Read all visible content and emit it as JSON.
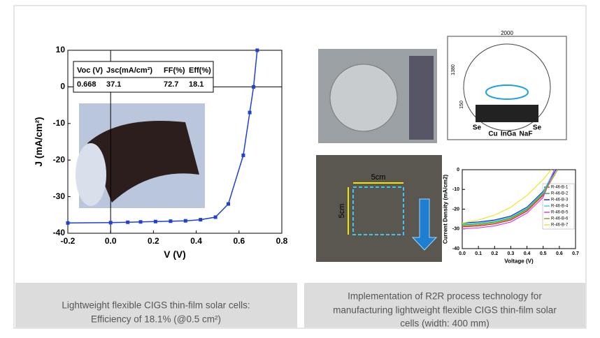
{
  "chart_data": [
    {
      "type": "line",
      "xlabel": "V (V)",
      "ylabel": "J (mA/cm²)",
      "xlim": [
        -0.2,
        0.8
      ],
      "xticks": [
        -0.2,
        {
          "value": 0,
          "label": "0.0"
        },
        0.2,
        0.4,
        0.6,
        0.8
      ],
      "ylim": [
        -40,
        10
      ],
      "yticks": [
        -40,
        -30,
        -20,
        -10,
        0,
        10
      ],
      "zero_lines": true,
      "series": [
        {
          "color": "#1f3fd6",
          "markers": true,
          "x": [
            -0.2,
            0.0,
            0.08,
            0.14,
            0.21,
            0.28,
            0.35,
            0.42,
            0.49,
            0.55,
            0.62,
            0.65,
            0.668,
            0.685
          ],
          "values": [
            -37.2,
            -37.1,
            -37.0,
            -36.9,
            -36.8,
            -36.7,
            -36.6,
            -36.3,
            -35.6,
            -32,
            -18.7,
            -7,
            0,
            10
          ]
        }
      ],
      "table": {
        "headers": [
          "Voc (V)",
          "Jsc(mA/cm²)",
          "FF(%)",
          "Eff(%)"
        ],
        "rows": [
          [
            "0.668",
            "37.1",
            "72.7",
            "18.1"
          ]
        ]
      }
    },
    {
      "type": "line",
      "xlabel": "Voltage (V)",
      "ylabel": "Current Density (mA/cm2)",
      "xlim": [
        0,
        0.7
      ],
      "xticks": [
        {
          "value": 0,
          "label": "0.0"
        },
        0.1,
        0.2,
        0.3,
        0.4,
        0.5,
        0.6,
        0.7
      ],
      "ylim": [
        -40,
        0
      ],
      "yticks": [
        -40,
        -30,
        -20,
        -10,
        0
      ],
      "legend": "center right",
      "series": [
        {
          "name": "R-46-B-1",
          "color": "#e8232a",
          "x": [
            0,
            0.1,
            0.2,
            0.3,
            0.4,
            0.5,
            0.57
          ],
          "values": [
            -29,
            -28.5,
            -27.5,
            -25.5,
            -21,
            -13,
            0
          ]
        },
        {
          "name": "R-46-B-2",
          "color": "#2fb34a",
          "x": [
            0,
            0.1,
            0.2,
            0.3,
            0.4,
            0.5,
            0.58
          ],
          "values": [
            -28,
            -27.5,
            -26.5,
            -24.5,
            -20,
            -12,
            0
          ]
        },
        {
          "name": "R-46-B-3",
          "color": "#1e2fd0",
          "x": [
            0,
            0.1,
            0.2,
            0.3,
            0.4,
            0.5,
            0.58
          ],
          "values": [
            -27,
            -26.5,
            -25.5,
            -23.5,
            -19,
            -11,
            0
          ]
        },
        {
          "name": "R-46-B-4",
          "color": "#3fd0e0",
          "x": [
            0,
            0.1,
            0.2,
            0.3,
            0.4,
            0.5,
            0.57
          ],
          "values": [
            -27.5,
            -27,
            -26,
            -24,
            -19.5,
            -11.5,
            0
          ]
        },
        {
          "name": "R-46-B-5",
          "color": "#e040d8",
          "x": [
            0,
            0.1,
            0.2,
            0.3,
            0.4,
            0.5,
            0.57
          ],
          "values": [
            -30,
            -29.5,
            -28.5,
            -26.5,
            -22,
            -14,
            0
          ]
        },
        {
          "name": "R-46-B-6",
          "color": "#9a9a2a",
          "x": [
            0,
            0.1,
            0.2,
            0.3,
            0.4,
            0.5,
            0.59
          ],
          "values": [
            -28.5,
            -28,
            -27,
            -25,
            -20.5,
            -12.5,
            0
          ]
        },
        {
          "name": "R-46-B-7",
          "color": "#e8e82a",
          "x": [
            0,
            0.1,
            0.2,
            0.3,
            0.4,
            0.5,
            0.55
          ],
          "values": [
            -27,
            -25.5,
            -23,
            -19,
            -13,
            -5,
            0
          ]
        }
      ]
    }
  ],
  "diagram": {
    "dimensions": [
      "2000",
      "1380",
      "150"
    ],
    "sources": [
      "Se",
      "Cu",
      "InGa",
      "NaF",
      "Se"
    ]
  },
  "sample_photo": {
    "labels": [
      "5cm",
      "5cm"
    ]
  },
  "captions": [
    [
      "Lightweight flexible CIGS thin-film solar cells:",
      "Efficiency of 18.1% (@0.5 cm²)"
    ],
    [
      "Implementation of R2R process technology for",
      "manufacturing lightweight flexible CIGS thin-film solar",
      "cells (width: 400 mm)"
    ]
  ]
}
